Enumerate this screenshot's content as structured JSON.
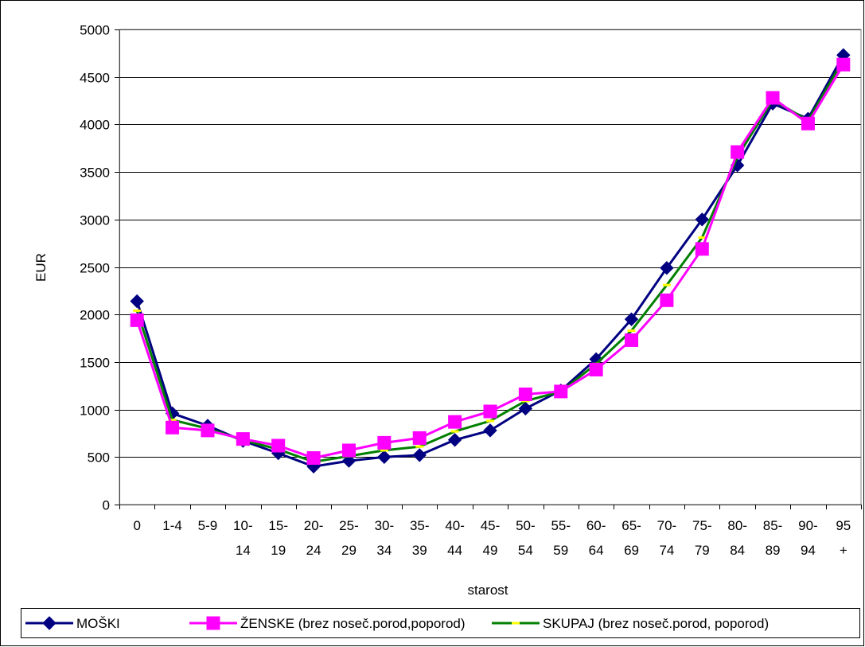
{
  "chart_data": {
    "type": "line",
    "title": "",
    "xlabel": "starost",
    "ylabel": "EUR",
    "ylim": [
      0,
      5000
    ],
    "yticks": [
      0,
      500,
      1000,
      1500,
      2000,
      2500,
      3000,
      3500,
      4000,
      4500,
      5000
    ],
    "grid": true,
    "legend_position": "bottom",
    "categories": [
      [
        "0"
      ],
      [
        "1-4"
      ],
      [
        "5-9"
      ],
      [
        "10-",
        "14"
      ],
      [
        "15-",
        "19"
      ],
      [
        "20-",
        "24"
      ],
      [
        "25-",
        "29"
      ],
      [
        "30-",
        "34"
      ],
      [
        "35-",
        "39"
      ],
      [
        "40-",
        "44"
      ],
      [
        "45-",
        "49"
      ],
      [
        "50-",
        "54"
      ],
      [
        "55-",
        "59"
      ],
      [
        "60-",
        "64"
      ],
      [
        "65-",
        "69"
      ],
      [
        "70-",
        "74"
      ],
      [
        "75-",
        "79"
      ],
      [
        "80-",
        "84"
      ],
      [
        "85-",
        "89"
      ],
      [
        "90-",
        "94"
      ],
      [
        "95",
        "+"
      ]
    ],
    "series": [
      {
        "name": "MOŠKI",
        "color": "#000080",
        "marker": "diamond",
        "values": [
          2140,
          960,
          830,
          670,
          540,
          400,
          460,
          500,
          520,
          680,
          780,
          1010,
          1200,
          1530,
          1950,
          2490,
          3000,
          3570,
          4220,
          4060,
          4730
        ]
      },
      {
        "name": "ŽENSKE (brez noseč.porod,poporod)",
        "color": "#ff00ff",
        "marker": "square",
        "values": [
          1940,
          810,
          780,
          690,
          620,
          490,
          570,
          650,
          700,
          870,
          980,
          1160,
          1190,
          1420,
          1730,
          2150,
          2690,
          3710,
          4280,
          4010,
          4630
        ]
      },
      {
        "name": "SKUPAJ (brez noseč.porod, poporod)",
        "color": "#008000",
        "marker": "dash",
        "marker_color": "#ffff00",
        "values": [
          2040,
          890,
          800,
          680,
          580,
          450,
          510,
          570,
          610,
          770,
          880,
          1090,
          1190,
          1480,
          1830,
          2310,
          2810,
          3660,
          4260,
          4040,
          4680
        ]
      }
    ]
  }
}
